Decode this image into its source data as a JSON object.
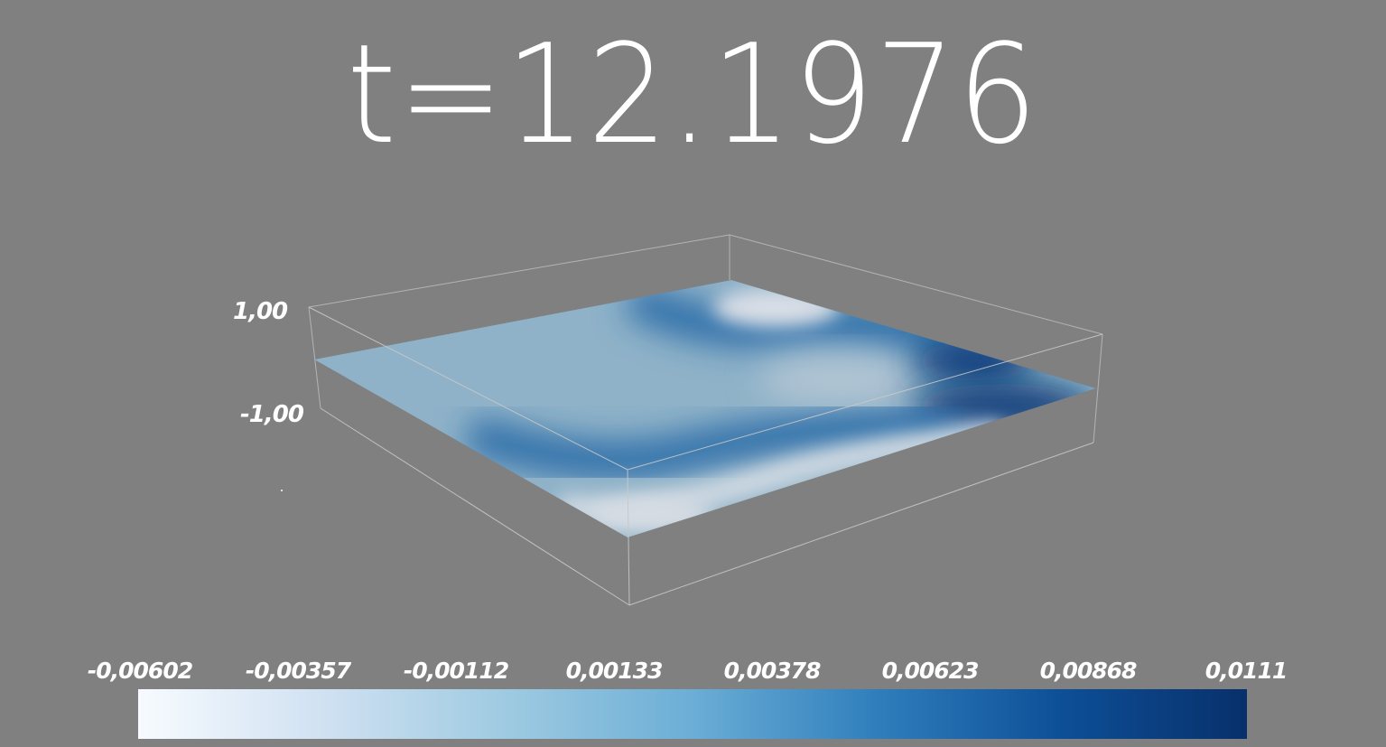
{
  "title": "t=12.1976",
  "z_axis": {
    "ticks": [
      "1,00",
      "-1,00"
    ]
  },
  "colorbar": {
    "labels": [
      "-0,00602",
      "-0,00357",
      "-0,00112",
      "0,00133",
      "0,00378",
      "0,00623",
      "0,00868",
      "0,0111"
    ],
    "min": -0.00602,
    "max": 0.0111,
    "colormap": [
      "#f7fbff",
      "#d0e1f2",
      "#9ecae1",
      "#6baed6",
      "#2f7ebc",
      "#0d4f97",
      "#08306b"
    ]
  },
  "colors": {
    "background": "#808080",
    "text": "#ffffff",
    "bounding_box": "#bfbfbf"
  }
}
